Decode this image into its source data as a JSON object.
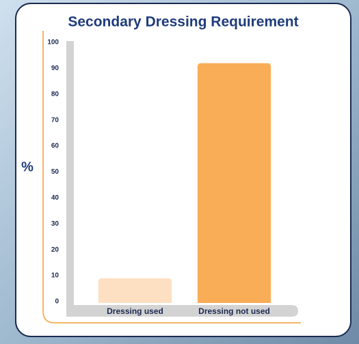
{
  "chart_data": {
    "type": "bar",
    "title": "Secondary Dressing Requirement",
    "y_label": "%",
    "categories": [
      "Dressing used",
      "Dressing not used"
    ],
    "values": [
      9,
      92
    ],
    "colors": [
      "#fde0c2",
      "#f9ad57"
    ],
    "ylim": [
      0,
      100
    ],
    "yticks": [
      0,
      10,
      20,
      30,
      40,
      50,
      60,
      70,
      80,
      90,
      100
    ],
    "grid": false
  }
}
